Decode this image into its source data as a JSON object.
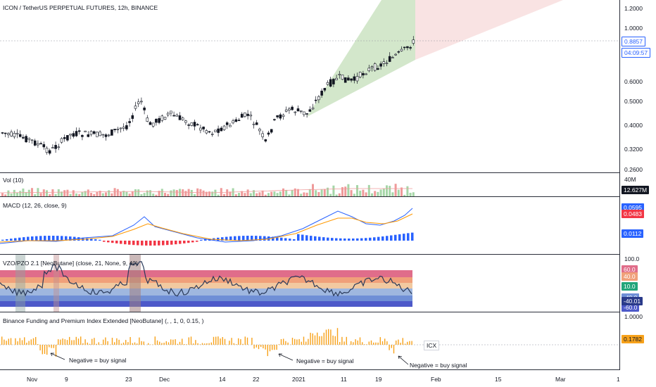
{
  "main": {
    "title": "ICON / TetherUS PERPETUAL FUTURES, 12h, BINANCE",
    "price_ticks": [
      "1.2000",
      "1.0000",
      "0.6000",
      "0.5000",
      "0.4000",
      "0.3200",
      "0.2600"
    ],
    "current_price": "0.8857",
    "countdown": "04:09:57"
  },
  "vol": {
    "label": "Vol (10)",
    "ticks": [
      "40M"
    ],
    "value": "12.627M"
  },
  "macd": {
    "label": "MACD (12, 26, close, 9)",
    "tags": [
      "0.0595",
      "0.0483",
      "0.0112"
    ]
  },
  "vzo": {
    "label": "VZO/PZO 2.1 [NeoButane] (close, 21, None, 9, 40)",
    "ticks": [
      "100.0"
    ],
    "tags": [
      "60.0",
      "40.0",
      "10.0",
      "-40.0",
      "-60.0",
      "-40.01"
    ]
  },
  "funding": {
    "label": "Binance Funding and Premium Index Extended [NeoButane] (, , 1, 0, 0.15, )",
    "ticks": [
      "1.0000"
    ],
    "value": "0.1782",
    "symbol_tag": "ICX",
    "annotations": [
      "Negative = buy signal",
      "Negative = buy signal",
      "Negative = buy signal"
    ]
  },
  "x_axis": [
    "Nov",
    "9",
    "23",
    "Dec",
    "14",
    "22",
    "2021",
    "11",
    "19",
    "Feb",
    "15",
    "Mar",
    "1"
  ],
  "colors": {
    "up": "#131722",
    "down": "#131722",
    "hist_up": "#2962ff",
    "hist_down": "#f23645",
    "funding": "#f7a21b"
  }
}
